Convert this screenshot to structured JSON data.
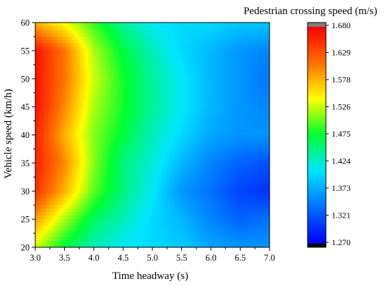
{
  "chart_data": {
    "type": "heatmap",
    "title": "",
    "xlabel": "Time headway (s)",
    "ylabel": "Vehicle speed (km/h)",
    "x_ticks": [
      "3.0",
      "3.5",
      "4.0",
      "4.5",
      "5.0",
      "5.5",
      "6.0",
      "6.5",
      "7.0"
    ],
    "y_ticks": [
      "20",
      "25",
      "30",
      "35",
      "40",
      "45",
      "50",
      "55",
      "60"
    ],
    "xlim": [
      3.0,
      7.0
    ],
    "ylim": [
      20,
      60
    ],
    "colorbar": {
      "title": "Pedestrian crossing speed (m/s)",
      "ticks": [
        "1.680",
        "1.629",
        "1.578",
        "1.526",
        "1.475",
        "1.424",
        "1.373",
        "1.321",
        "1.270"
      ],
      "range": [
        1.27,
        1.68
      ],
      "over_color": "#7f7f7f",
      "under_color": "#000000"
    },
    "colormap": [
      "#0000ff",
      "#0070ff",
      "#00e5ff",
      "#00ff30",
      "#ffff00",
      "#ff7000",
      "#ff0000"
    ],
    "x": [
      3.0,
      3.5,
      4.0,
      4.5,
      5.0,
      5.5,
      6.0,
      6.5,
      7.0
    ],
    "y": [
      20,
      25,
      30,
      35,
      40,
      45,
      50,
      55,
      60
    ],
    "z": [
      [
        1.53,
        1.47,
        1.43,
        1.41,
        1.4,
        1.39,
        1.37,
        1.36,
        1.36
      ],
      [
        1.59,
        1.52,
        1.46,
        1.43,
        1.4,
        1.38,
        1.35,
        1.33,
        1.34
      ],
      [
        1.65,
        1.58,
        1.5,
        1.45,
        1.41,
        1.36,
        1.34,
        1.31,
        1.3
      ],
      [
        1.66,
        1.6,
        1.51,
        1.45,
        1.42,
        1.38,
        1.35,
        1.33,
        1.32
      ],
      [
        1.66,
        1.58,
        1.51,
        1.47,
        1.43,
        1.4,
        1.37,
        1.36,
        1.36
      ],
      [
        1.67,
        1.6,
        1.52,
        1.48,
        1.44,
        1.41,
        1.38,
        1.36,
        1.35
      ],
      [
        1.67,
        1.61,
        1.53,
        1.48,
        1.44,
        1.41,
        1.38,
        1.36,
        1.34
      ],
      [
        1.67,
        1.61,
        1.52,
        1.47,
        1.43,
        1.4,
        1.38,
        1.36,
        1.35
      ],
      [
        1.58,
        1.54,
        1.49,
        1.44,
        1.41,
        1.4,
        1.4,
        1.39,
        1.39
      ]
    ]
  }
}
